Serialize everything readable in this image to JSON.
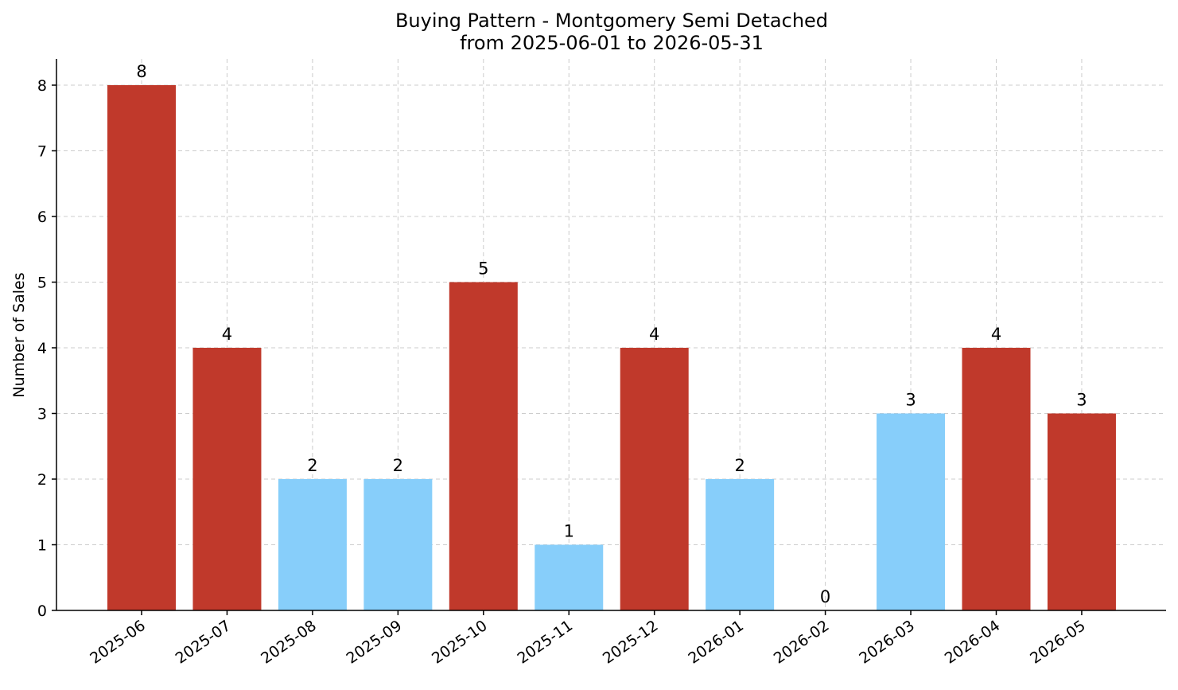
{
  "chart_data": {
    "type": "bar",
    "title": "Buying Pattern - Montgomery Semi Detached",
    "subtitle": "from 2025-06-01 to 2026-05-31",
    "xlabel": "",
    "ylabel": "Number of Sales",
    "categories": [
      "2025-06",
      "2025-07",
      "2025-08",
      "2025-09",
      "2025-10",
      "2025-11",
      "2025-12",
      "2026-01",
      "2026-02",
      "2026-03",
      "2026-04",
      "2026-05"
    ],
    "values": [
      8,
      4,
      2,
      2,
      5,
      1,
      4,
      2,
      0,
      3,
      4,
      3
    ],
    "bar_colors": [
      "#c0392b",
      "#c0392b",
      "#87cefa",
      "#87cefa",
      "#c0392b",
      "#87cefa",
      "#c0392b",
      "#87cefa",
      "#87cefa",
      "#87cefa",
      "#c0392b",
      "#c0392b"
    ],
    "ylim": [
      0,
      8.4
    ],
    "yticks": [
      0,
      1,
      2,
      3,
      4,
      5,
      6,
      7,
      8
    ],
    "grid": true,
    "legend": "none"
  }
}
